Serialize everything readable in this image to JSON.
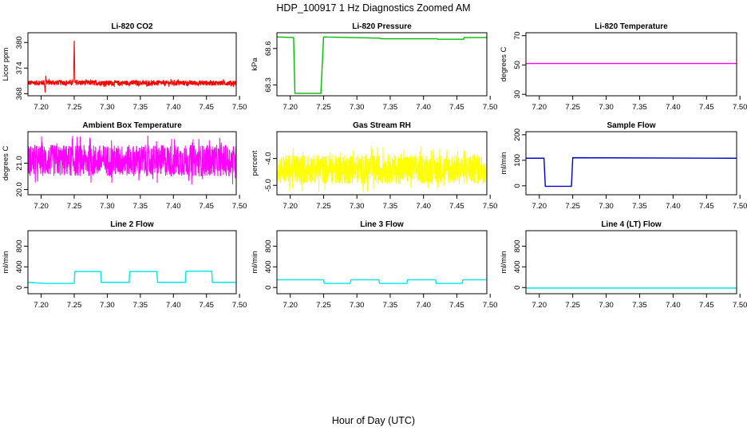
{
  "figure": {
    "title": "HDP_100917  1 Hz Diagnostics Zoomed AM",
    "xlabel": "Hour of Day (UTC)"
  },
  "chart_data": [
    {
      "type": "line",
      "title": "Li-820 CO2",
      "ylabel": "Licor ppm",
      "color": "#ff0000",
      "xlim": [
        7.18,
        7.495
      ],
      "ylim": [
        367.5,
        382.3
      ],
      "xticks": [
        7.2,
        7.25,
        7.3,
        7.35,
        7.4,
        7.45,
        7.5
      ],
      "xtick_labels": [
        "7.20",
        "7.25",
        "7.30",
        "7.35",
        "7.40",
        "7.45",
        "7.50"
      ],
      "yticks": [
        368,
        374,
        380
      ],
      "ytick_labels": [
        "368",
        "374",
        "380"
      ],
      "series": [
        {
          "name": "CO2",
          "base": 370.5,
          "noise": 0.6,
          "x": [
            7.18,
            7.205,
            7.206,
            7.207,
            7.208,
            7.249,
            7.2495,
            7.25,
            7.2505,
            7.251,
            7.295
          ],
          "y": [
            370.5,
            370.6,
            368.0,
            372.5,
            370.6,
            370.6,
            375.0,
            382.0,
            377.0,
            370.6,
            370.5
          ]
        }
      ]
    },
    {
      "type": "line",
      "title": "Li-820 Pressure",
      "ylabel": "kPa",
      "color": "#00bb00",
      "xlim": [
        7.18,
        7.495
      ],
      "ylim": [
        68.21,
        68.73
      ],
      "xticks": [
        7.2,
        7.25,
        7.3,
        7.35,
        7.4,
        7.45,
        7.5
      ],
      "xtick_labels": [
        "7.20",
        "7.25",
        "7.30",
        "7.35",
        "7.40",
        "7.45",
        "7.50"
      ],
      "yticks": [
        68.3,
        68.6
      ],
      "ytick_labels": [
        "68.3",
        "68.6"
      ],
      "series": [
        {
          "name": "Pressure",
          "x": [
            7.18,
            7.205,
            7.207,
            7.246,
            7.25,
            7.335,
            7.336,
            7.42,
            7.421,
            7.46,
            7.461,
            7.495
          ],
          "y": [
            68.695,
            68.69,
            68.23,
            68.23,
            68.695,
            68.685,
            68.68,
            68.68,
            68.676,
            68.676,
            68.69,
            68.69
          ]
        }
      ]
    },
    {
      "type": "line",
      "title": "Li-820 Temperature",
      "ylabel": "degrees C",
      "color": "#ff00ff",
      "xlim": [
        7.18,
        7.495
      ],
      "ylim": [
        29,
        72
      ],
      "xticks": [
        7.2,
        7.25,
        7.3,
        7.35,
        7.4,
        7.45,
        7.5
      ],
      "xtick_labels": [
        "7.20",
        "7.25",
        "7.30",
        "7.35",
        "7.40",
        "7.45",
        "7.50"
      ],
      "yticks": [
        30,
        50,
        70
      ],
      "ytick_labels": [
        "30",
        "50",
        "70"
      ],
      "series": [
        {
          "name": "Temperature",
          "x": [
            7.18,
            7.495
          ],
          "y": [
            51.0,
            51.0
          ]
        }
      ]
    },
    {
      "type": "line",
      "title": "Ambient Box Temperature",
      "ylabel": "degrees C",
      "color": "#ff00ff",
      "xlim": [
        7.18,
        7.495
      ],
      "ylim": [
        19.8,
        22.2
      ],
      "xticks": [
        7.2,
        7.25,
        7.3,
        7.35,
        7.4,
        7.45,
        7.5
      ],
      "xtick_labels": [
        "7.20",
        "7.25",
        "7.30",
        "7.35",
        "7.40",
        "7.45",
        "7.50"
      ],
      "yticks": [
        20.0,
        21.0
      ],
      "ytick_labels": [
        "20.0",
        "21.0"
      ],
      "series": [
        {
          "name": "Box Temp",
          "base": 21.1,
          "noise": 0.6,
          "x": [
            7.18,
            7.495
          ],
          "y": [
            21.1,
            21.1
          ]
        }
      ]
    },
    {
      "type": "line",
      "title": "Gas Stream RH",
      "ylabel": "percent",
      "color": "#ffff00",
      "xlim": [
        7.18,
        7.495
      ],
      "ylim": [
        -5.35,
        -3.0
      ],
      "xticks": [
        7.2,
        7.25,
        7.3,
        7.35,
        7.4,
        7.45,
        7.5
      ],
      "xtick_labels": [
        "7.20",
        "7.25",
        "7.30",
        "7.35",
        "7.40",
        "7.45",
        "7.50"
      ],
      "yticks": [
        -5.0,
        -4.0
      ],
      "ytick_labels": [
        "-5.0",
        "-4.0"
      ],
      "series": [
        {
          "name": "RH",
          "base": -4.4,
          "noise": 0.55,
          "x": [
            7.18,
            7.495
          ],
          "y": [
            -4.4,
            -4.4
          ]
        }
      ]
    },
    {
      "type": "line",
      "title": "Sample Flow",
      "ylabel": "ml/min",
      "color": "#0000cc",
      "xlim": [
        7.18,
        7.495
      ],
      "ylim": [
        -35,
        212
      ],
      "xticks": [
        7.2,
        7.25,
        7.3,
        7.35,
        7.4,
        7.45,
        7.5
      ],
      "xtick_labels": [
        "7.20",
        "7.25",
        "7.30",
        "7.35",
        "7.40",
        "7.45",
        "7.50"
      ],
      "yticks": [
        0,
        100,
        200
      ],
      "ytick_labels": [
        "0",
        "100",
        "200"
      ],
      "series": [
        {
          "name": "Sample Flow",
          "x": [
            7.18,
            7.207,
            7.209,
            7.248,
            7.25,
            7.495
          ],
          "y": [
            108,
            108,
            -2,
            -2,
            110,
            108
          ]
        }
      ]
    },
    {
      "type": "line",
      "title": "Line 2 Flow",
      "ylabel": "ml/min",
      "color": "#00e5e5",
      "xlim": [
        7.18,
        7.495
      ],
      "ylim": [
        -120,
        1100
      ],
      "xticks": [
        7.2,
        7.25,
        7.3,
        7.35,
        7.4,
        7.45,
        7.5
      ],
      "xtick_labels": [
        "7.20",
        "7.25",
        "7.30",
        "7.35",
        "7.40",
        "7.45",
        "7.50"
      ],
      "yticks": [
        0,
        400,
        800
      ],
      "ytick_labels": [
        "0",
        "400",
        "800"
      ],
      "series": [
        {
          "name": "Line 2 Flow",
          "x": [
            7.18,
            7.205,
            7.25,
            7.251,
            7.29,
            7.291,
            7.333,
            7.334,
            7.375,
            7.376,
            7.418,
            7.419,
            7.458,
            7.459,
            7.495
          ],
          "y": [
            100,
            80,
            80,
            310,
            310,
            100,
            100,
            310,
            310,
            100,
            100,
            315,
            315,
            100,
            100
          ]
        }
      ]
    },
    {
      "type": "line",
      "title": "Line 3 Flow",
      "ylabel": "ml/min",
      "color": "#00e5e5",
      "xlim": [
        7.18,
        7.495
      ],
      "ylim": [
        -120,
        1100
      ],
      "xticks": [
        7.2,
        7.25,
        7.3,
        7.35,
        7.4,
        7.45,
        7.5
      ],
      "xtick_labels": [
        "7.20",
        "7.25",
        "7.30",
        "7.35",
        "7.40",
        "7.45",
        "7.50"
      ],
      "yticks": [
        0,
        400,
        800
      ],
      "ytick_labels": [
        "0",
        "400",
        "800"
      ],
      "series": [
        {
          "name": "Line 3 Flow",
          "x": [
            7.18,
            7.25,
            7.251,
            7.29,
            7.291,
            7.333,
            7.334,
            7.375,
            7.376,
            7.418,
            7.419,
            7.458,
            7.459,
            7.495
          ],
          "y": [
            150,
            150,
            80,
            80,
            150,
            150,
            80,
            80,
            150,
            150,
            80,
            80,
            150,
            150
          ]
        }
      ]
    },
    {
      "type": "line",
      "title": "Line 4 (LT) Flow",
      "ylabel": "ml/min",
      "color": "#00e5e5",
      "xlim": [
        7.18,
        7.495
      ],
      "ylim": [
        -120,
        1100
      ],
      "xticks": [
        7.2,
        7.25,
        7.3,
        7.35,
        7.4,
        7.45,
        7.5
      ],
      "xtick_labels": [
        "7.20",
        "7.25",
        "7.30",
        "7.35",
        "7.40",
        "7.45",
        "7.50"
      ],
      "yticks": [
        0,
        400,
        800
      ],
      "ytick_labels": [
        "0",
        "400",
        "800"
      ],
      "series": [
        {
          "name": "Line 4 Flow",
          "x": [
            7.18,
            7.495
          ],
          "y": [
            -10,
            -10
          ]
        }
      ]
    }
  ]
}
